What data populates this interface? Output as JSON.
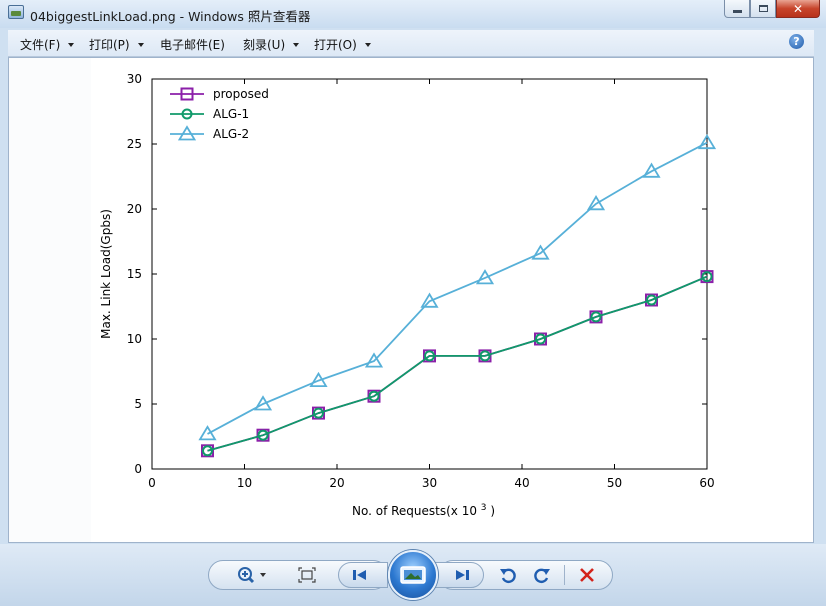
{
  "window": {
    "title": "04biggestLinkLoad.png - Windows 照片查看器",
    "minimize_icon": "minimize-icon",
    "maximize_icon": "maximize-icon",
    "close_label": "✕"
  },
  "menu": {
    "items": [
      {
        "label": "文件(F)"
      },
      {
        "label": "打印(P)"
      },
      {
        "label": "电子邮件(E)"
      },
      {
        "label": "刻录(U)"
      },
      {
        "label": "打开(O)"
      }
    ],
    "help_label": "?"
  },
  "chart_data": {
    "type": "line",
    "xlabel": "No. of Requests(x 10",
    "xlabel_superscript": "3",
    "xlabel_suffix": ")",
    "ylabel": "Max. Link Load(Gpbs)",
    "xlim": [
      0,
      60
    ],
    "ylim": [
      0,
      30
    ],
    "xticks": [
      0,
      10,
      20,
      30,
      40,
      50,
      60
    ],
    "yticks": [
      0,
      5,
      10,
      15,
      20,
      25,
      30
    ],
    "grid": false,
    "legend_position": "top-left",
    "x": [
      6,
      12,
      18,
      24,
      30,
      36,
      42,
      48,
      54,
      60
    ],
    "series": [
      {
        "name": "proposed",
        "color": "#8b1fa9",
        "marker": "square",
        "values": [
          1.4,
          2.6,
          4.3,
          5.6,
          8.7,
          8.7,
          10.0,
          11.7,
          13.0,
          14.8
        ]
      },
      {
        "name": "ALG-1",
        "color": "#109a6a",
        "marker": "circle",
        "values": [
          1.4,
          2.6,
          4.3,
          5.6,
          8.7,
          8.7,
          10.0,
          11.7,
          13.0,
          14.8
        ]
      },
      {
        "name": "ALG-2",
        "color": "#57b0d8",
        "marker": "triangle",
        "values": [
          2.7,
          5.0,
          6.8,
          8.3,
          12.9,
          14.7,
          16.6,
          20.4,
          22.9,
          25.1
        ]
      }
    ]
  },
  "toolbar": {
    "zoom_icon": "zoom-icon",
    "fit_icon": "fit-to-window-icon",
    "prev_icon": "previous-icon",
    "slideshow_icon": "slideshow-icon",
    "next_icon": "next-icon",
    "rotate_left_icon": "rotate-counterclockwise-icon",
    "rotate_right_icon": "rotate-clockwise-icon",
    "delete_icon": "delete-icon"
  }
}
